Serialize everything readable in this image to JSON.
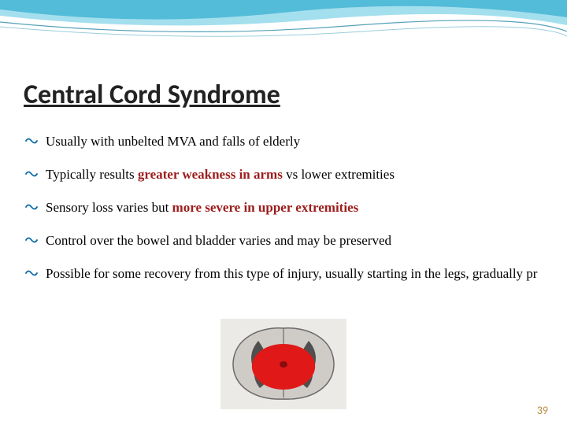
{
  "header": {
    "wave_colors": [
      "#3aa9c9",
      "#5ac4e0",
      "#a7dde8",
      "#6fb8cc"
    ],
    "background": "#ffffff"
  },
  "title": "Central Cord Syndrome",
  "title_fontsize": 34,
  "title_color": "#222222",
  "bullet_color": "#0b6aa8",
  "bullets": [
    {
      "segments": [
        {
          "text": "Usually with unbelted MVA and falls of elderly",
          "highlight": false
        }
      ]
    },
    {
      "segments": [
        {
          "text": "Typically results ",
          "highlight": false
        },
        {
          "text": "greater weakness in arms ",
          "highlight": true
        },
        {
          "text": "vs lower extremities",
          "highlight": false
        }
      ]
    },
    {
      "segments": [
        {
          "text": "Sensory loss varies but ",
          "highlight": false
        },
        {
          "text": "more severe in upper extremities",
          "highlight": true
        }
      ]
    },
    {
      "segments": [
        {
          "text": "Control over the bowel and bladder varies and may be preserved",
          "highlight": false
        }
      ]
    },
    {
      "segments": [
        {
          "text": "Possible for some recovery from this type of injury, usually starting in the legs, gradually pr",
          "highlight": false
        }
      ]
    }
  ],
  "text_fontsize": 17,
  "highlight_color": "#9c1c1c",
  "image": {
    "type": "cross-section",
    "outer_fill": "#c8c4bf",
    "outer_stroke": "#6a6a6a",
    "lesion_fill": "#e01818",
    "gray_horns": "#5a5a5a",
    "width": 160,
    "height": 115
  },
  "page_number": "39",
  "page_number_color": "#b88a3a"
}
